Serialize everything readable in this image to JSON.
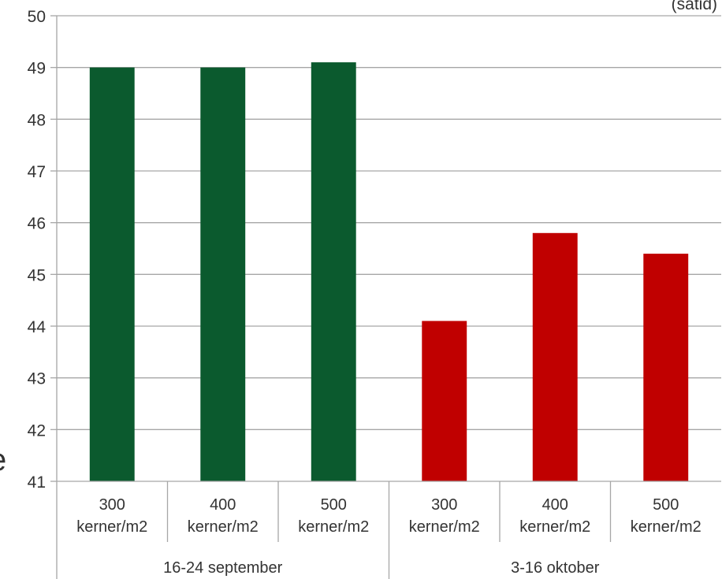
{
  "chart_data": {
    "type": "bar",
    "note": "(satid)",
    "edge_text": "e",
    "y_range": [
      41,
      50
    ],
    "y_ticks": [
      "41",
      "42",
      "43",
      "44",
      "45",
      "46",
      "47",
      "48",
      "49",
      "50"
    ],
    "grid": true,
    "groups": [
      {
        "label": "16-24 september",
        "color": "#0b5a2e",
        "categories": [
          "300\nkerner/m2",
          "400\nkerner/m2",
          "500\nkerner/m2"
        ],
        "values": [
          49.0,
          49.0,
          49.1
        ]
      },
      {
        "label": "3-16 oktober",
        "color": "#c00000",
        "categories": [
          "300\nkerner/m2",
          "400\nkerner/m2",
          "500\nkerner/m2"
        ],
        "values": [
          44.1,
          45.8,
          45.4
        ]
      }
    ]
  }
}
